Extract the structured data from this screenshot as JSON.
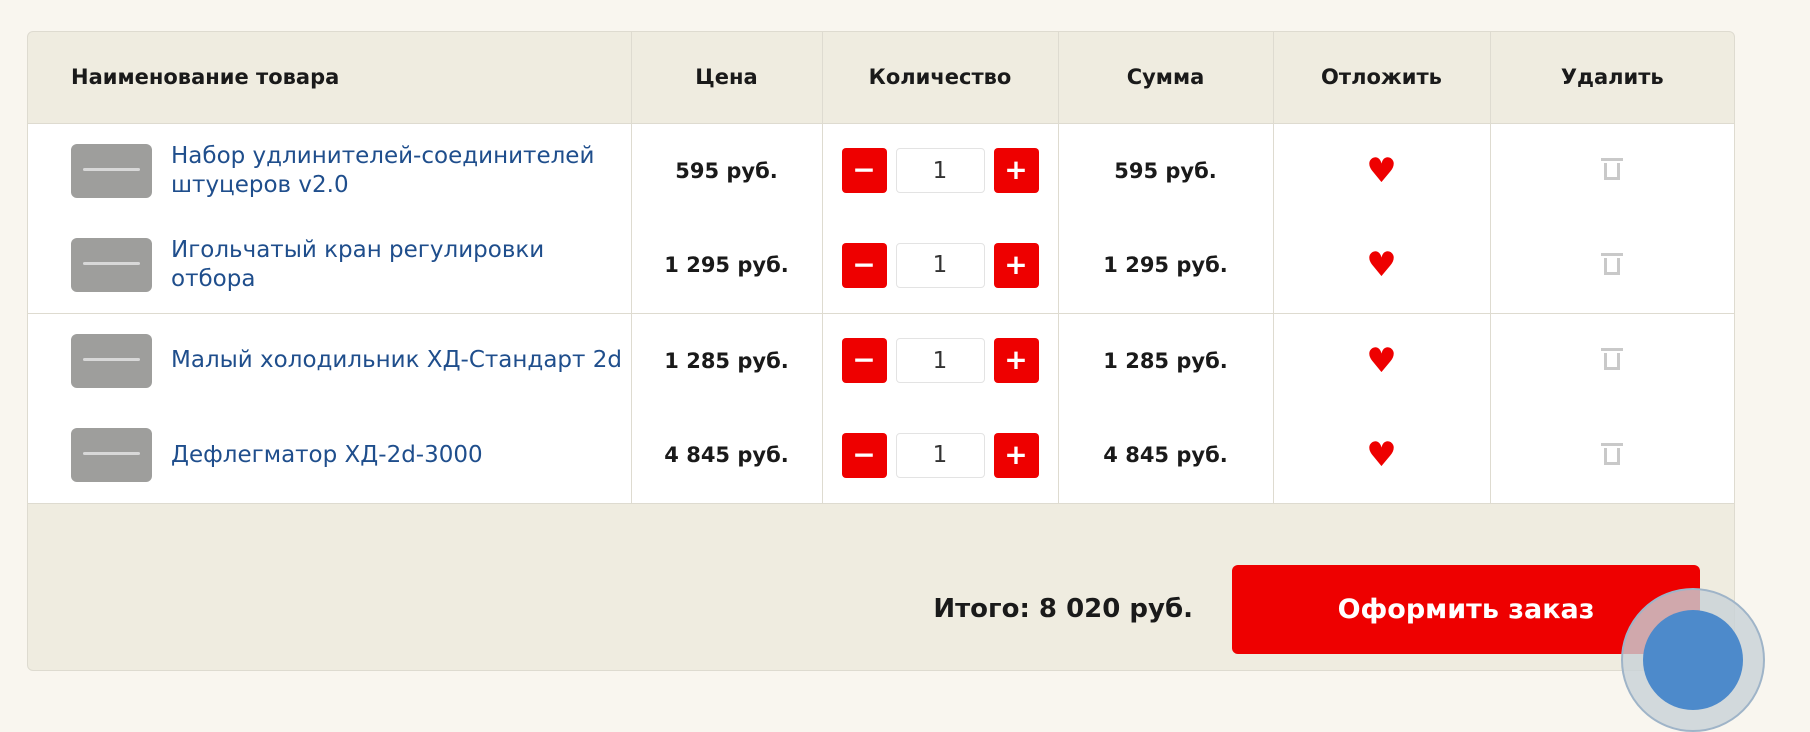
{
  "columns": [
    "Наименование товара",
    "Цена",
    "Количество",
    "Сумма",
    "Отложить",
    "Удалить"
  ],
  "items": [
    {
      "name": "Набор удлинителей-соединителей штуцеров v2.0",
      "price": "595 руб.",
      "qty": "1",
      "sum": "595 руб."
    },
    {
      "name": "Игольчатый кран регулировки отбора",
      "price": "1 295 руб.",
      "qty": "1",
      "sum": "1 295 руб."
    },
    {
      "name": "Малый холодильник ХД-Стандарт 2d",
      "price": "1 285 руб.",
      "qty": "1",
      "sum": "1 285 руб."
    },
    {
      "name": "Дефлегматор ХД-2d-3000",
      "price": "4 845 руб.",
      "qty": "1",
      "sum": "4 845 руб."
    }
  ],
  "controls": {
    "minus": "−",
    "plus": "+",
    "heart": "♥"
  },
  "footer": {
    "total": "Итого: 8 020 руб.",
    "order_button": "Оформить заказ"
  },
  "colors": {
    "accent": "#ee0000",
    "link": "#1f4e8c",
    "header_bg": "#efece0"
  }
}
